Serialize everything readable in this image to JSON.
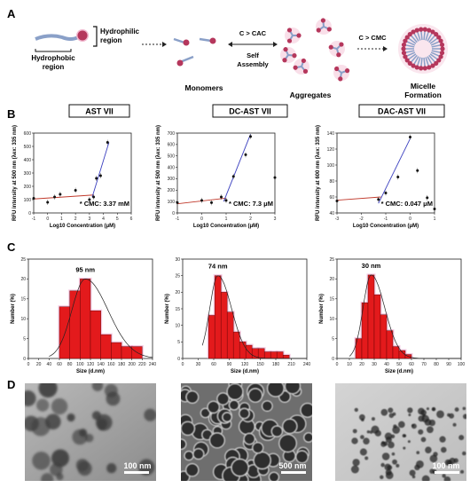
{
  "panels": {
    "A": "A",
    "B": "B",
    "C": "C",
    "D": "D"
  },
  "panel_a": {
    "hydrophilic": [
      "Hydrophilic",
      "region"
    ],
    "hydrophobic": [
      "Hydrophobic",
      "region"
    ],
    "monomers": "Monomers",
    "cac": "C > CAC",
    "self_assembly": [
      "Self",
      "Assembly"
    ],
    "aggregates": "Aggregates",
    "cmc": "C > CMC",
    "micelle": [
      "Micelle",
      "Formation"
    ]
  },
  "colors": {
    "head": "#b5375c",
    "tail": "#8aa0c8",
    "glow": "#f2b8cf",
    "bar": "#e31a1c",
    "bar_edge": "#5a0000",
    "bar_glow": "#f0a8d0",
    "fit_red": "#c0392b",
    "fit_blue": "#3a3fbf"
  },
  "chart_data": [
    {
      "type": "scatter",
      "title": "AST VII",
      "xlabel": "Log10 Concentration (μM)",
      "ylabel": "RFU intensity at 500 nm (λex: 335 nm)",
      "xlim": [
        -1,
        6
      ],
      "ylim": [
        0,
        600
      ],
      "xticks": [
        -1,
        0,
        1,
        2,
        3,
        4,
        5,
        6
      ],
      "yticks": [
        0,
        100,
        200,
        300,
        400,
        500,
        600
      ],
      "x": [
        -1,
        0,
        0.5,
        0.9,
        2,
        3,
        3.3,
        3.5,
        3.8,
        4.3
      ],
      "y": [
        110,
        80,
        120,
        140,
        170,
        100,
        120,
        260,
        280,
        530
      ],
      "annotation": "* CMC: 3.37 mM"
    },
    {
      "type": "scatter",
      "title": "DC-AST VII",
      "xlabel": "Log10 Concentration (μM)",
      "ylabel": "RFU intensity at 500 nm (λex: 335 nm)",
      "xlim": [
        -1,
        3
      ],
      "ylim": [
        0,
        700
      ],
      "xticks": [
        -1,
        0,
        1,
        2,
        3
      ],
      "yticks": [
        0,
        100,
        200,
        300,
        400,
        500,
        600,
        700
      ],
      "x": [
        -1,
        0,
        0.4,
        0.8,
        1,
        1.3,
        1.8,
        2,
        3
      ],
      "y": [
        90,
        110,
        90,
        140,
        110,
        320,
        510,
        670,
        310
      ],
      "annotation": "* CMC: 7.3 μM"
    },
    {
      "type": "scatter",
      "title": "DAC-AST VII",
      "xlabel": "Log10 Concentration (μM)",
      "ylabel": "RFU intensity at 600 nm (λex: 335 nm)",
      "xlim": [
        -3,
        1
      ],
      "ylim": [
        40,
        140
      ],
      "xticks": [
        -3,
        -2,
        -1,
        0,
        1
      ],
      "yticks": [
        40,
        60,
        80,
        100,
        120,
        140
      ],
      "x": [
        -3,
        -1.3,
        -1,
        -0.5,
        0,
        0.3,
        0.7,
        1
      ],
      "y": [
        55,
        57,
        65,
        85,
        135,
        93,
        59,
        45
      ],
      "annotation": "* CMC: 0.047 μM"
    },
    {
      "type": "bar",
      "xlabel": "Size (d.nm)",
      "ylabel": "Number (%)",
      "xlim": [
        0,
        240
      ],
      "ylim": [
        0,
        25
      ],
      "xticks": [
        0,
        20,
        40,
        60,
        80,
        100,
        120,
        140,
        160,
        180,
        200,
        220,
        240
      ],
      "yticks": [
        0,
        5,
        10,
        15,
        20,
        25
      ],
      "bin_start": 60,
      "bin_width": 20,
      "values": [
        13,
        17,
        20,
        12,
        6,
        4,
        3,
        3
      ],
      "annotation": "95 nm"
    },
    {
      "type": "bar",
      "xlabel": "Size (d.nm)",
      "ylabel": "Number (%)",
      "xlim": [
        0,
        240
      ],
      "ylim": [
        0,
        30
      ],
      "xticks": [
        0,
        30,
        60,
        90,
        120,
        150,
        180,
        210,
        240
      ],
      "yticks": [
        0,
        5,
        10,
        15,
        20,
        25,
        30
      ],
      "bin_start": 50,
      "bin_width": 12,
      "values": [
        13,
        25,
        20,
        14,
        8,
        5,
        4,
        3,
        3,
        2,
        2,
        2,
        1
      ],
      "annotation": "74 nm"
    },
    {
      "type": "bar",
      "xlabel": "Size (d.nm)",
      "ylabel": "Number (%)",
      "xlim": [
        0,
        100
      ],
      "ylim": [
        0,
        25
      ],
      "xticks": [
        0,
        10,
        20,
        30,
        40,
        50,
        60,
        70,
        80,
        90,
        100
      ],
      "yticks": [
        0,
        5,
        10,
        15,
        20,
        25
      ],
      "bin_start": 15,
      "bin_width": 5,
      "values": [
        5,
        14,
        21,
        16,
        11,
        7,
        3,
        2,
        1
      ],
      "annotation": "30 nm"
    }
  ],
  "panel_d": {
    "scalebars": [
      "100 nm",
      "500 nm",
      "100 nm"
    ]
  }
}
